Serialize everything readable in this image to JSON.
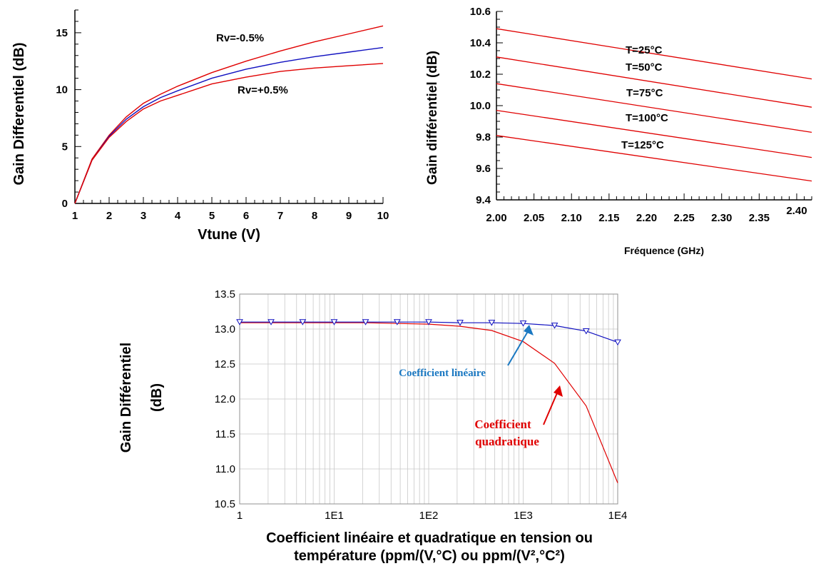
{
  "chart_data": [
    {
      "type": "line",
      "xlabel": "Vtune (V)",
      "ylabel": "Gain Differentiel (dB)",
      "xlim": [
        1,
        10
      ],
      "ylim": [
        0,
        17
      ],
      "x_ticks": [
        1,
        2,
        3,
        4,
        5,
        6,
        7,
        8,
        9,
        10
      ],
      "y_ticks": [
        0,
        5,
        10,
        15
      ],
      "grid": false,
      "x": [
        1,
        1.5,
        2,
        2.5,
        3,
        3.5,
        4,
        5,
        6,
        7,
        8,
        9,
        10
      ],
      "series": [
        {
          "name": "Rv=-0.5%",
          "color": "#e00000",
          "values": [
            0,
            3.9,
            6.0,
            7.6,
            8.8,
            9.6,
            10.3,
            11.5,
            12.5,
            13.4,
            14.2,
            14.9,
            15.6
          ]
        },
        {
          "color": "#1010c0",
          "values": [
            0,
            3.8,
            5.9,
            7.4,
            8.5,
            9.3,
            9.9,
            11.0,
            11.8,
            12.4,
            12.9,
            13.3,
            13.7
          ]
        },
        {
          "name": "Rv=+0.5%",
          "color": "#e00000",
          "values": [
            0,
            3.8,
            5.8,
            7.2,
            8.3,
            9.0,
            9.5,
            10.5,
            11.1,
            11.6,
            11.9,
            12.1,
            12.3
          ]
        }
      ]
    },
    {
      "type": "line",
      "xlabel": "Fréquence (GHz)",
      "ylabel": "Gain différentiel (dB)",
      "xlim": [
        2.0,
        2.42
      ],
      "ylim": [
        9.4,
        10.6
      ],
      "x_tick_labels": [
        "2.00",
        "2.05",
        "2.10",
        "2.15",
        "2.20",
        "2.25",
        "2.30",
        "2.35",
        "2.40"
      ],
      "y_tick_labels": [
        "9.4",
        "9.6",
        "9.8",
        "10.0",
        "10.2",
        "10.4",
        "10.6"
      ],
      "grid": false,
      "series": [
        {
          "name": "T=25°C",
          "color": "#e00000",
          "x": [
            2.0,
            2.42
          ],
          "values": [
            10.49,
            10.17
          ]
        },
        {
          "name": "T=50°C",
          "color": "#e00000",
          "x": [
            2.0,
            2.42
          ],
          "values": [
            10.31,
            9.99
          ]
        },
        {
          "name": "T=75°C",
          "color": "#e00000",
          "x": [
            2.0,
            2.42
          ],
          "values": [
            10.14,
            9.83
          ]
        },
        {
          "name": "T=100°C",
          "color": "#e00000",
          "x": [
            2.0,
            2.42
          ],
          "values": [
            9.97,
            9.67
          ]
        },
        {
          "name": "T=125°C",
          "color": "#e00000",
          "x": [
            2.0,
            2.42
          ],
          "values": [
            9.81,
            9.52
          ]
        }
      ]
    },
    {
      "type": "line",
      "xscale": "log",
      "xlabel_lines": [
        "Coefficient linéaire et quadratique en tension ou",
        "température (ppm/(V,°C) ou ppm/(V²,°C²)"
      ],
      "ylabel_lines": [
        "Gain Différentiel",
        "(dB)"
      ],
      "xlim": [
        1,
        10000
      ],
      "ylim": [
        10.5,
        13.5
      ],
      "x_tick_labels": [
        "1",
        "1E1",
        "1E2",
        "1E3",
        "1E4"
      ],
      "y_tick_labels": [
        "10.5",
        "11.0",
        "11.5",
        "12.0",
        "12.5",
        "13.0",
        "13.5"
      ],
      "grid": true,
      "x": [
        1,
        2.15,
        4.64,
        10,
        21.5,
        46.4,
        100,
        215,
        464,
        1000,
        2150,
        4640,
        10000
      ],
      "series": [
        {
          "name": "Coefficient linéaire",
          "color": "#1010c0",
          "marker": "triangle-down",
          "values": [
            13.1,
            13.1,
            13.1,
            13.1,
            13.1,
            13.1,
            13.1,
            13.09,
            13.09,
            13.08,
            13.05,
            12.97,
            12.81
          ]
        },
        {
          "name_lines": [
            "Coefficient",
            "quadratique"
          ],
          "color": "#e00000",
          "values": [
            13.09,
            13.09,
            13.09,
            13.09,
            13.09,
            13.08,
            13.07,
            13.04,
            12.98,
            12.82,
            12.51,
            11.9,
            10.8
          ]
        }
      ]
    }
  ]
}
